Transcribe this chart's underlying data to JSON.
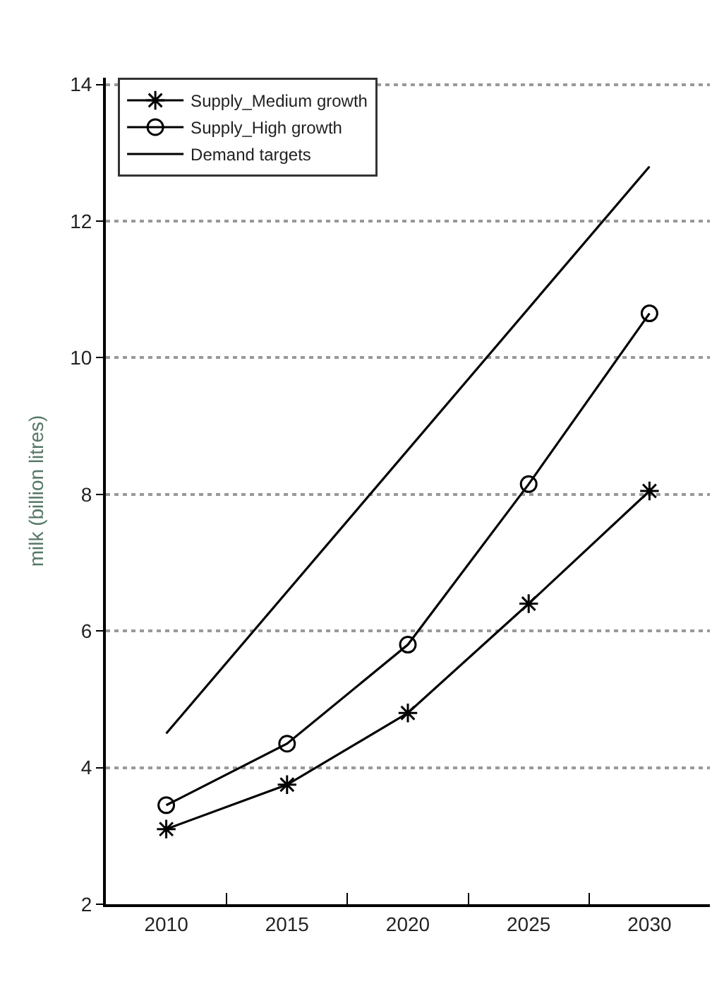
{
  "chart_data": {
    "type": "line",
    "ylabel": "milk (billion litres)",
    "categories": [
      "2010",
      "2015",
      "2020",
      "2025",
      "2030"
    ],
    "series": [
      {
        "name": "Supply_Medium growth",
        "color": "#000000",
        "marker": "cross",
        "values": [
          3.1,
          3.75,
          4.8,
          6.4,
          8.05
        ]
      },
      {
        "name": "Supply_High growth",
        "color": "#000000",
        "marker": "circle",
        "values": [
          3.45,
          4.35,
          5.8,
          8.15,
          10.65
        ]
      },
      {
        "name": "Demand targets",
        "color": "#000000",
        "marker": "none",
        "values": [
          4.5,
          null,
          null,
          null,
          12.8
        ]
      }
    ],
    "ylim": [
      2,
      14.1
    ],
    "yticks": [
      2,
      4,
      6,
      8,
      10,
      12,
      14
    ],
    "grid": "y",
    "legend": "top left",
    "line_style": "solid"
  }
}
